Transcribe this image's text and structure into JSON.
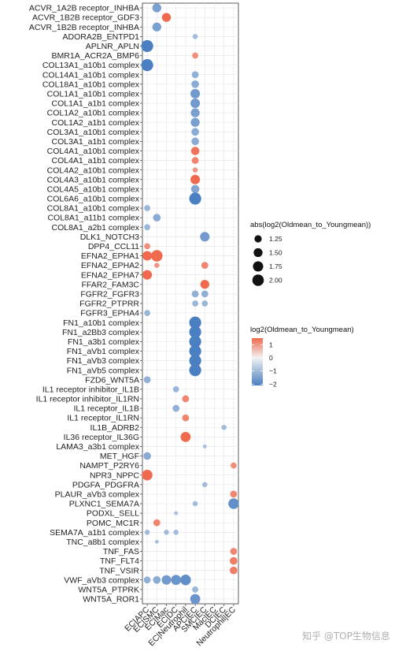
{
  "chart_data": {
    "type": "scatter",
    "subtype": "dot-plot",
    "x_categories": [
      "EC|APC",
      "EC|SMC",
      "EC|Mac",
      "EC|DC",
      "EC|Neutrophil",
      "APC|EC",
      "SMC|EC",
      "Mac|EC",
      "DC|EC",
      "Neutrophil|EC"
    ],
    "y_categories": [
      "ACVR_1A2B receptor_INHBA",
      "ACVR_1B2B receptor_GDF3",
      "ACVR_1B2B receptor_INHBA",
      "ADORA2B_ENTPD1",
      "APLNR_APLN",
      "BMR1A_ACR2A_BMP6",
      "COL13A1_a10b1 complex",
      "COL14A1_a10b1 complex",
      "COL18A1_a10b1 complex",
      "COL1A1_a10b1 complex",
      "COL1A1_a1b1 complex",
      "COL1A2_a10b1 complex",
      "COL1A2_a1b1 complex",
      "COL3A1_a10b1 complex",
      "COL3A1_a1b1 complex",
      "COL4A1_a10b1 complex",
      "COL4A1_a1b1 complex",
      "COL4A2_a10b1 complex",
      "COL4A3_a10b1 complex",
      "COL4A5_a10b1 complex",
      "COL6A6_a10b1 complex",
      "COL8A1_a10b1 complex",
      "COL8A1_a11b1 complex",
      "COL8A1_a2b1 complex",
      "DLK1_NOTCH3",
      "DPP4_CCL11",
      "EFNA2_EPHA1",
      "EFNA2_EPHA2",
      "EFNA2_EPHA7",
      "FFAR2_FAM3C",
      "FGFR2_FGFR3",
      "FGFR2_PTPRR",
      "FGFR3_EPHA4",
      "FN1_a10b1 complex",
      "FN1_a2Bb3 complex",
      "FN1_a3b1 complex",
      "FN1_aVb1 complex",
      "FN1_aVb3 complex",
      "FN1_aVb5 complex",
      "FZD6_WNT5A",
      "IL1 receptor inhibitor_IL1B",
      "IL1 receptor inhibitor_IL1RN",
      "IL1 receptor_IL1B",
      "IL1 receptor_IL1RN",
      "IL1B_ADRB2",
      "IL36 receptor_IL36G",
      "LAMA3_a3b1 complex",
      "MET_HGF",
      "NAMPT_P2RY6",
      "NPR3_NPPC",
      "PDGFA_PDGFRA",
      "PLAUR_aVb3 complex",
      "PLXNC1_SEMA7A",
      "PODXL_SELL",
      "POMC_MC1R",
      "SEMA7A_a1b1 complex",
      "TNC_a8b1 complex",
      "TNF_FAS",
      "TNF_FLT4",
      "TNF_VSIR",
      "VWF_aVb3 complex",
      "WNT5A_PTPRK",
      "WNT5A_ROR1"
    ],
    "points": [
      {
        "y": "ACVR_1A2B receptor_INHBA",
        "x": "EC|SMC",
        "value": -1.5
      },
      {
        "y": "ACVR_1B2B receptor_GDF3",
        "x": "EC|Mac",
        "value": 1.5
      },
      {
        "y": "ACVR_1B2B receptor_INHBA",
        "x": "EC|SMC",
        "value": -1.5
      },
      {
        "y": "ADORA2B_ENTPD1",
        "x": "APC|EC",
        "value": -1.0
      },
      {
        "y": "APLNR_APLN",
        "x": "EC|APC",
        "value": -2.1
      },
      {
        "y": "BMR1A_ACR2A_BMP6",
        "x": "APC|EC",
        "value": 1.1
      },
      {
        "y": "COL13A1_a10b1 complex",
        "x": "EC|APC",
        "value": -2.1
      },
      {
        "y": "COL14A1_a10b1 complex",
        "x": "APC|EC",
        "value": -1.2
      },
      {
        "y": "COL18A1_a10b1 complex",
        "x": "APC|EC",
        "value": -1.3
      },
      {
        "y": "COL1A1_a10b1 complex",
        "x": "APC|EC",
        "value": -1.6
      },
      {
        "y": "COL1A1_a1b1 complex",
        "x": "APC|EC",
        "value": -1.6
      },
      {
        "y": "COL1A2_a10b1 complex",
        "x": "APC|EC",
        "value": -1.5
      },
      {
        "y": "COL1A2_a1b1 complex",
        "x": "APC|EC",
        "value": -1.5
      },
      {
        "y": "COL3A1_a10b1 complex",
        "x": "APC|EC",
        "value": -1.3
      },
      {
        "y": "COL3A1_a1b1 complex",
        "x": "APC|EC",
        "value": -1.3
      },
      {
        "y": "COL4A1_a10b1 complex",
        "x": "APC|EC",
        "value": 1.4
      },
      {
        "y": "COL4A1_a1b1 complex",
        "x": "APC|EC",
        "value": 1.2
      },
      {
        "y": "COL4A2_a10b1 complex",
        "x": "APC|EC",
        "value": 1.0
      },
      {
        "y": "COL4A3_a10b1 complex",
        "x": "APC|EC",
        "value": 1.6
      },
      {
        "y": "COL4A5_a10b1 complex",
        "x": "APC|EC",
        "value": -1.4
      },
      {
        "y": "COL6A6_a10b1 complex",
        "x": "APC|EC",
        "value": -2.1
      },
      {
        "y": "COL8A1_a10b1 complex",
        "x": "EC|APC",
        "value": -1.1
      },
      {
        "y": "COL8A1_a11b1 complex",
        "x": "EC|SMC",
        "value": -1.3
      },
      {
        "y": "COL8A1_a2b1 complex",
        "x": "EC|APC",
        "value": -1.1
      },
      {
        "y": "DLK1_NOTCH3",
        "x": "SMC|EC",
        "value": -1.6
      },
      {
        "y": "DPP4_CCL11",
        "x": "EC|APC",
        "value": 1.1
      },
      {
        "y": "EFNA2_EPHA1",
        "x": "EC|APC",
        "value": 1.6
      },
      {
        "y": "EFNA2_EPHA1",
        "x": "EC|SMC",
        "value": 2.0
      },
      {
        "y": "EFNA2_EPHA2",
        "x": "EC|SMC",
        "value": 1.0
      },
      {
        "y": "EFNA2_EPHA2",
        "x": "SMC|EC",
        "value": 1.2
      },
      {
        "y": "EFNA2_EPHA7",
        "x": "EC|APC",
        "value": 1.6
      },
      {
        "y": "FFAR2_FAM3C",
        "x": "SMC|EC",
        "value": 1.5
      },
      {
        "y": "FGFR2_FGFR3",
        "x": "APC|EC",
        "value": -1.2
      },
      {
        "y": "FGFR2_FGFR3",
        "x": "SMC|EC",
        "value": -1.2
      },
      {
        "y": "FGFR2_PTPRR",
        "x": "APC|EC",
        "value": -1.1
      },
      {
        "y": "FGFR2_PTPRR",
        "x": "SMC|EC",
        "value": -1.1
      },
      {
        "y": "FGFR3_EPHA4",
        "x": "EC|APC",
        "value": -1.1
      },
      {
        "y": "FN1_a10b1 complex",
        "x": "APC|EC",
        "value": -2.1
      },
      {
        "y": "FN1_a2Bb3 complex",
        "x": "APC|EC",
        "value": -2.1
      },
      {
        "y": "FN1_a3b1 complex",
        "x": "APC|EC",
        "value": -2.1
      },
      {
        "y": "FN1_aVb1 complex",
        "x": "APC|EC",
        "value": -2.1
      },
      {
        "y": "FN1_aVb3 complex",
        "x": "APC|EC",
        "value": -2.1
      },
      {
        "y": "FN1_aVb5 complex",
        "x": "APC|EC",
        "value": -2.1
      },
      {
        "y": "FZD6_WNT5A",
        "x": "EC|APC",
        "value": -1.2
      },
      {
        "y": "IL1 receptor inhibitor_IL1B",
        "x": "EC|DC",
        "value": -1.1
      },
      {
        "y": "IL1 receptor inhibitor_IL1RN",
        "x": "EC|Neutrophil",
        "value": 1.2
      },
      {
        "y": "IL1 receptor_IL1B",
        "x": "EC|DC",
        "value": -1.2
      },
      {
        "y": "IL1 receptor_IL1RN",
        "x": "EC|Neutrophil",
        "value": 1.2
      },
      {
        "y": "IL1B_ADRB2",
        "x": "DC|EC",
        "value": -1.0
      },
      {
        "y": "IL36 receptor_IL36G",
        "x": "EC|Neutrophil",
        "value": 1.7
      },
      {
        "y": "LAMA3_a3b1 complex",
        "x": "SMC|EC",
        "value": -0.9
      },
      {
        "y": "MET_HGF",
        "x": "EC|APC",
        "value": -1.3
      },
      {
        "y": "NAMPT_P2RY6",
        "x": "Neutrophil|EC",
        "value": 1.1
      },
      {
        "y": "NPR3_NPPC",
        "x": "EC|APC",
        "value": 1.8
      },
      {
        "y": "PDGFA_PDGFRA",
        "x": "SMC|EC",
        "value": -1.0
      },
      {
        "y": "PLAUR_aVb3 complex",
        "x": "Neutrophil|EC",
        "value": 1.2
      },
      {
        "y": "PLXNC1_SEMA7A",
        "x": "APC|EC",
        "value": -1.0
      },
      {
        "y": "PLXNC1_SEMA7A",
        "x": "Neutrophil|EC",
        "value": -1.8
      },
      {
        "y": "PODXL_SELL",
        "x": "EC|DC",
        "value": -0.9
      },
      {
        "y": "POMC_MC1R",
        "x": "EC|SMC",
        "value": 1.2
      },
      {
        "y": "SEMA7A_a1b1 complex",
        "x": "EC|APC",
        "value": -1.0
      },
      {
        "y": "SEMA7A_a1b1 complex",
        "x": "EC|Mac",
        "value": -1.0
      },
      {
        "y": "SEMA7A_a1b1 complex",
        "x": "EC|DC",
        "value": -1.0
      },
      {
        "y": "TNC_a8b1 complex",
        "x": "EC|SMC",
        "value": -0.9
      },
      {
        "y": "TNF_FAS",
        "x": "Neutrophil|EC",
        "value": 1.2
      },
      {
        "y": "TNF_FLT4",
        "x": "Neutrophil|EC",
        "value": 1.3
      },
      {
        "y": "TNF_VSIR",
        "x": "Neutrophil|EC",
        "value": 1.3
      },
      {
        "y": "VWF_aVb3 complex",
        "x": "EC|APC",
        "value": -1.2
      },
      {
        "y": "VWF_aVb3 complex",
        "x": "EC|SMC",
        "value": -1.3
      },
      {
        "y": "VWF_aVb3 complex",
        "x": "EC|Mac",
        "value": -1.6
      },
      {
        "y": "VWF_aVb3 complex",
        "x": "EC|DC",
        "value": -1.7
      },
      {
        "y": "VWF_aVb3 complex",
        "x": "EC|Neutrophil",
        "value": -1.8
      },
      {
        "y": "WNT5A_PTPRK",
        "x": "APC|EC",
        "value": -1.1
      },
      {
        "y": "WNT5A_ROR1",
        "x": "APC|EC",
        "value": -1.7
      }
    ],
    "size_legend": {
      "title": "abs(log2(Oldmean_to_Youngmean))",
      "values": [
        1.25,
        1.5,
        1.75,
        2.0
      ],
      "labels": [
        "1.25",
        "1.50",
        "1.75",
        "2.00"
      ]
    },
    "color_legend": {
      "title": "log2(Oldmean_to_Youngmean)",
      "ticks": [
        1,
        0,
        -1,
        -2
      ],
      "tick_labels": [
        "1",
        "0",
        "−1",
        "−2"
      ],
      "low_color": "#4a7fc1",
      "mid_color": "#f2f2f2",
      "high_color": "#ef6a4f"
    },
    "grid": true
  },
  "watermark": "知乎 @TOP生物信息"
}
